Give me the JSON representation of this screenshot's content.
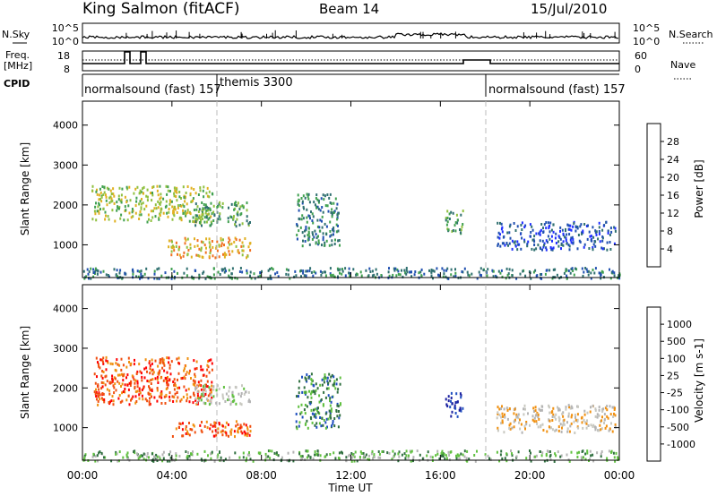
{
  "header": {
    "station": "King Salmon (fitACF)",
    "beam": "Beam 14",
    "date": "15/Jul/2010"
  },
  "noise_panel": {
    "left_label": "N.Sky",
    "right_label": "N.Search",
    "ticks_left": [
      "10^5",
      "10^0"
    ],
    "ticks_right": [
      "10^5",
      "10^0"
    ]
  },
  "freq_panel": {
    "left_label_1": "Freq.",
    "left_label_2": "[MHz]",
    "right_label": "Nave",
    "ticks_left": [
      "18",
      "8"
    ],
    "ticks_right": [
      "60",
      "0"
    ]
  },
  "cpid_panel": {
    "label": "CPID",
    "segments": [
      {
        "name": "normalsound (fast) 157",
        "start_hour": 0
      },
      {
        "name": "themis 3300",
        "start_hour": 6
      },
      {
        "name": "normalsound (fast) 157",
        "start_hour": 18
      }
    ]
  },
  "x_axis": {
    "label": "Time UT",
    "ticks": [
      "00:00",
      "04:00",
      "08:00",
      "12:00",
      "16:00",
      "20:00",
      "00:00"
    ]
  },
  "colors": {
    "power": [
      "#2030ff",
      "#2050b0",
      "#307070",
      "#40a050",
      "#90c040",
      "#e0b020",
      "#f07020",
      "#e02020"
    ],
    "velocity": [
      "#ff0000",
      "#f05010",
      "#f09010",
      "#c8c8c0",
      "#b4b4b4",
      "#60c040",
      "#307040",
      "#2050c0",
      "#1a20a0"
    ]
  },
  "chart_data": [
    {
      "type": "heatmap",
      "title": "",
      "xlabel": "Time UT",
      "ylabel": "Slant Range [km]",
      "xlim": [
        0,
        24
      ],
      "ylim": [
        180,
        4600
      ],
      "yticks": [
        "1000",
        "2000",
        "3000",
        "4000"
      ],
      "colorbar": {
        "label": "Power [dB]",
        "ticks": [
          "4",
          "8",
          "12",
          "16",
          "20",
          "24",
          "28"
        ]
      },
      "echo_regions": [
        {
          "t0": 0.4,
          "t1": 5.8,
          "r0": 1600,
          "r1": 2500,
          "level": 4
        },
        {
          "t0": 3.8,
          "t1": 7.5,
          "r0": 700,
          "r1": 1200,
          "level": 5
        },
        {
          "t0": 5.0,
          "t1": 7.5,
          "r0": 1500,
          "r1": 2100,
          "level": 3
        },
        {
          "t0": 9.5,
          "t1": 11.5,
          "r0": 1000,
          "r1": 2300,
          "level": 2
        },
        {
          "t0": 16.2,
          "t1": 17.0,
          "r0": 1300,
          "r1": 1900,
          "level": 3
        },
        {
          "t0": 18.5,
          "t1": 23.8,
          "r0": 900,
          "r1": 1600,
          "level": 1
        },
        {
          "t0": 0.0,
          "t1": 24.0,
          "r0": 180,
          "r1": 450,
          "level": 2
        }
      ]
    },
    {
      "type": "heatmap",
      "title": "",
      "xlabel": "Time UT",
      "ylabel": "Slant Range [km]",
      "xlim": [
        0,
        24
      ],
      "ylim": [
        180,
        4600
      ],
      "yticks": [
        "1000",
        "2000",
        "3000",
        "4000"
      ],
      "colorbar": {
        "label": "Velocity [m s-1]",
        "ticks": [
          "1000",
          "500",
          "100",
          "25",
          "-25",
          "-100",
          "-500",
          "-1000"
        ]
      },
      "echo_regions": [
        {
          "t0": 0.5,
          "t1": 5.8,
          "r0": 1600,
          "r1": 2800,
          "level": 1
        },
        {
          "t0": 3.8,
          "t1": 7.5,
          "r0": 800,
          "r1": 1200,
          "level": 1
        },
        {
          "t0": 5.0,
          "t1": 7.5,
          "r0": 1600,
          "r1": 2100,
          "level": 4
        },
        {
          "t0": 9.5,
          "t1": 11.5,
          "r0": 1000,
          "r1": 2400,
          "level": 6
        },
        {
          "t0": 16.2,
          "t1": 17.0,
          "r0": 1300,
          "r1": 1900,
          "level": 8
        },
        {
          "t0": 18.5,
          "t1": 23.8,
          "r0": 900,
          "r1": 1600,
          "level": 3
        },
        {
          "t0": 0.0,
          "t1": 24.0,
          "r0": 180,
          "r1": 450,
          "level": 5
        }
      ]
    }
  ]
}
